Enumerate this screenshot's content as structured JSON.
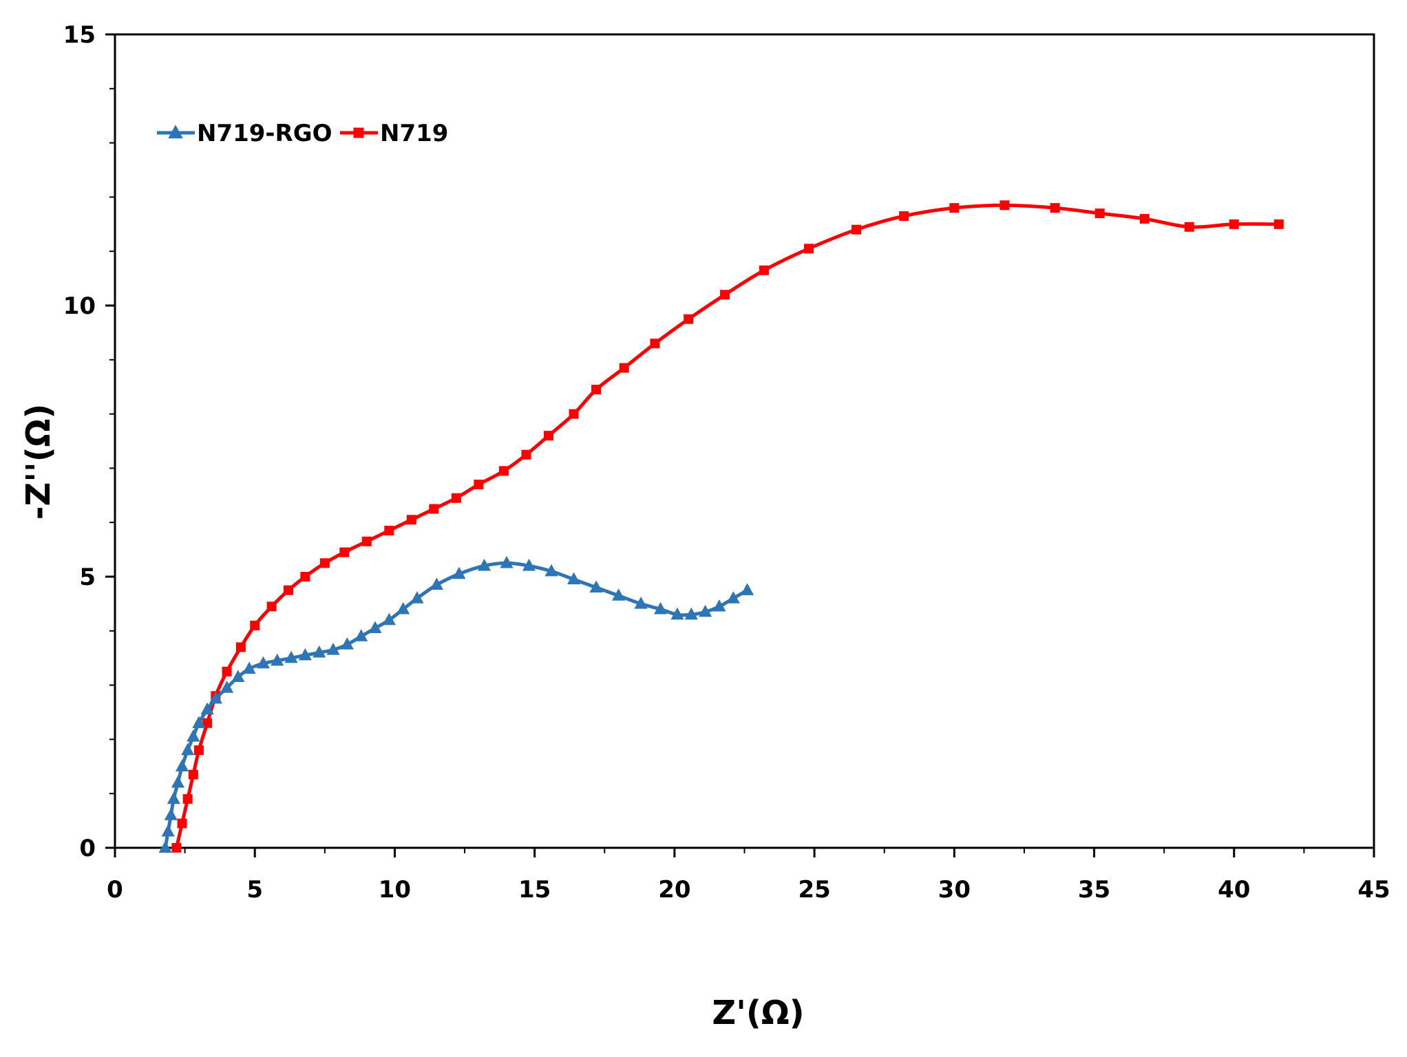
{
  "chart_data": {
    "type": "scatter",
    "title": "",
    "xlabel": "Z'(Ω)",
    "ylabel": "-Z''(Ω)",
    "xlim": [
      0,
      45
    ],
    "ylim": [
      0,
      15
    ],
    "xticks": [
      0,
      5,
      10,
      15,
      20,
      25,
      30,
      35,
      40,
      45
    ],
    "yticks": [
      0,
      5,
      10,
      15
    ],
    "grid": false,
    "legend_position": "top-left",
    "series": [
      {
        "name": "N719-RGO",
        "color": "#2e75b6",
        "marker": "triangle",
        "x": [
          1.8,
          1.9,
          2.0,
          2.1,
          2.25,
          2.4,
          2.6,
          2.8,
          3.0,
          3.3,
          3.6,
          4.0,
          4.4,
          4.8,
          5.3,
          5.8,
          6.3,
          6.8,
          7.3,
          7.8,
          8.3,
          8.8,
          9.3,
          9.8,
          10.3,
          10.8,
          11.5,
          12.3,
          13.2,
          14.0,
          14.8,
          15.6,
          16.4,
          17.2,
          18.0,
          18.8,
          19.5,
          20.1,
          20.6,
          21.1,
          21.6,
          22.1,
          22.6
        ],
        "y": [
          0.0,
          0.3,
          0.6,
          0.9,
          1.2,
          1.5,
          1.8,
          2.05,
          2.3,
          2.55,
          2.75,
          2.95,
          3.15,
          3.3,
          3.4,
          3.45,
          3.5,
          3.55,
          3.6,
          3.65,
          3.75,
          3.9,
          4.05,
          4.2,
          4.4,
          4.6,
          4.85,
          5.05,
          5.2,
          5.25,
          5.2,
          5.1,
          4.95,
          4.8,
          4.65,
          4.5,
          4.4,
          4.3,
          4.3,
          4.35,
          4.45,
          4.6,
          4.75
        ]
      },
      {
        "name": "N719",
        "color": "#ff0000",
        "marker": "square",
        "x": [
          2.2,
          2.4,
          2.6,
          2.8,
          3.0,
          3.3,
          3.6,
          4.0,
          4.5,
          5.0,
          5.6,
          6.2,
          6.8,
          7.5,
          8.2,
          9.0,
          9.8,
          10.6,
          11.4,
          12.2,
          13.0,
          13.9,
          14.7,
          15.5,
          16.4,
          17.2,
          18.2,
          19.3,
          20.5,
          21.8,
          23.2,
          24.8,
          26.5,
          28.2,
          30.0,
          31.8,
          33.6,
          35.2,
          36.8,
          38.4,
          40.0,
          41.6
        ],
        "y": [
          0.0,
          0.45,
          0.9,
          1.35,
          1.8,
          2.3,
          2.8,
          3.25,
          3.7,
          4.1,
          4.45,
          4.75,
          5.0,
          5.25,
          5.45,
          5.65,
          5.85,
          6.05,
          6.25,
          6.45,
          6.7,
          6.95,
          7.25,
          7.6,
          8.0,
          8.45,
          8.85,
          9.3,
          9.75,
          10.2,
          10.65,
          11.05,
          11.4,
          11.65,
          11.8,
          11.85,
          11.8,
          11.7,
          11.6,
          11.45,
          11.5,
          11.5
        ]
      }
    ]
  }
}
